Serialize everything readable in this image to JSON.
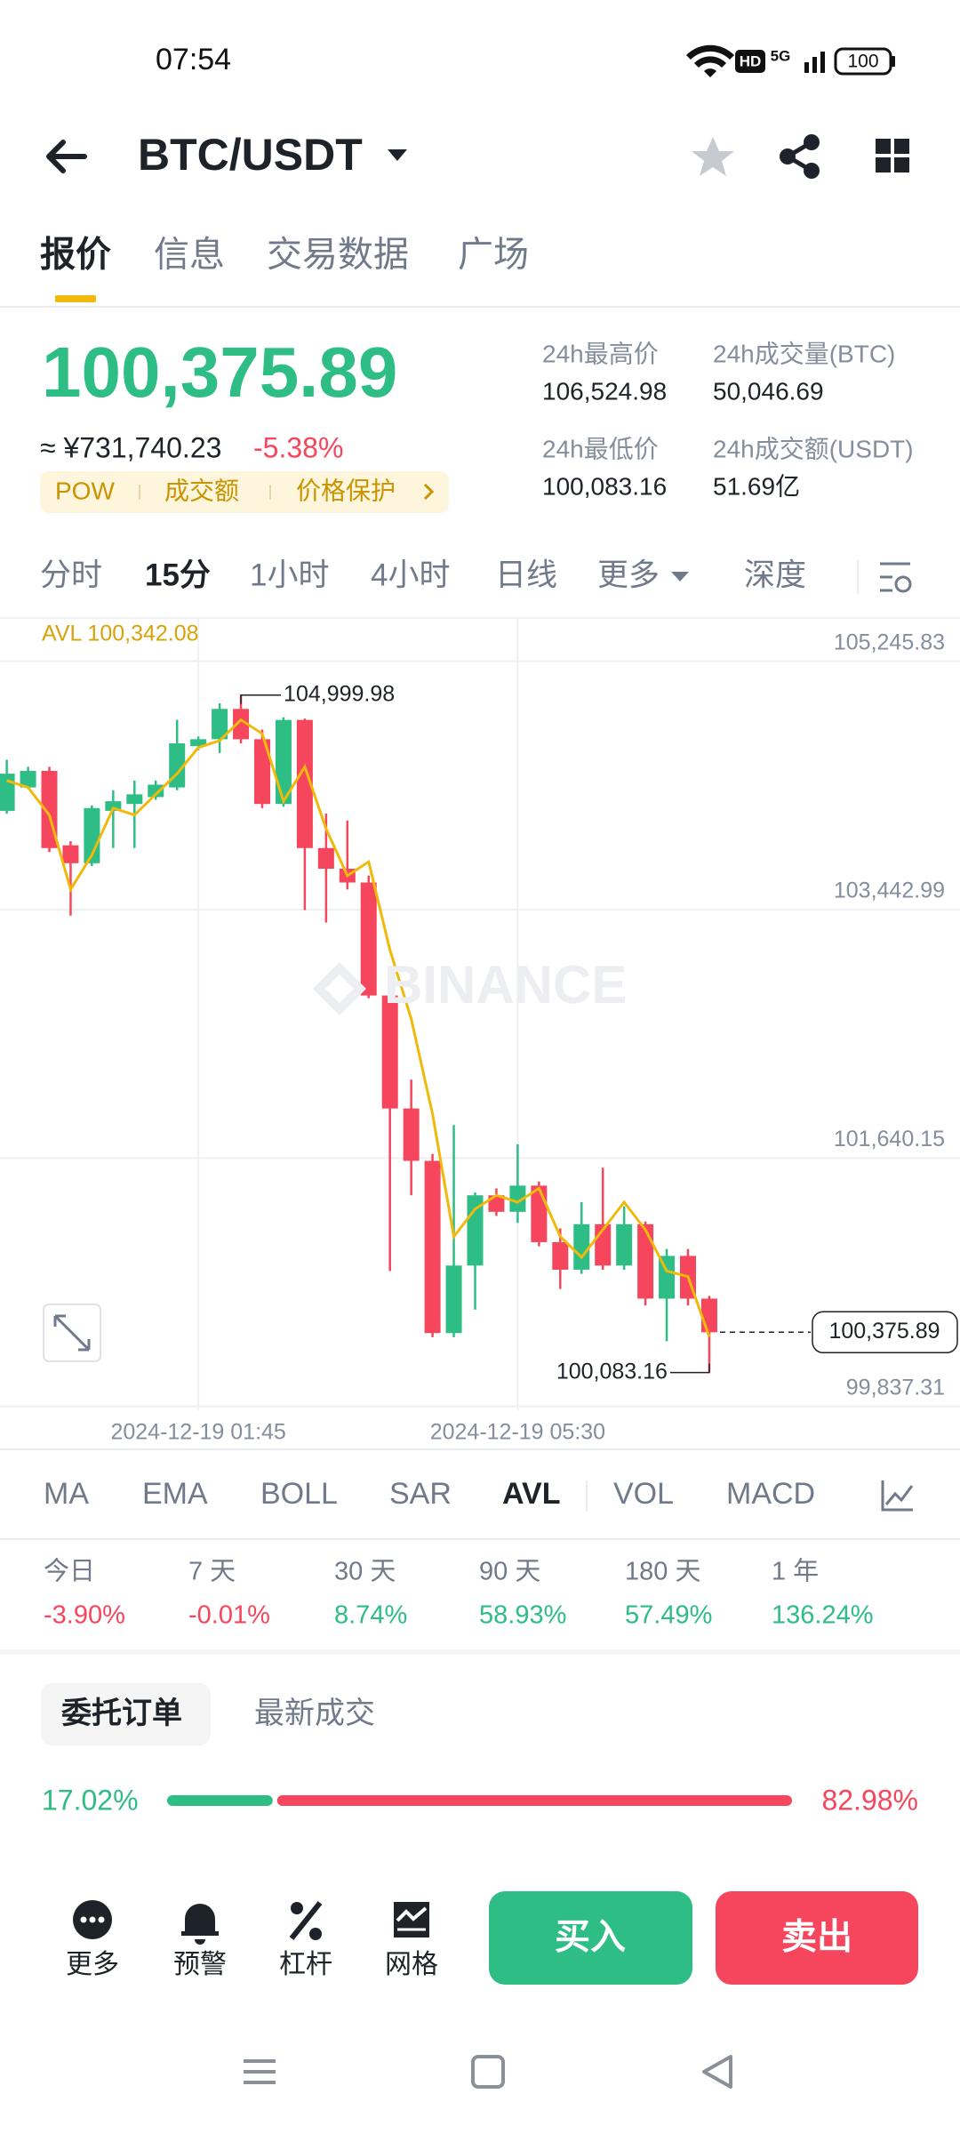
{
  "status_bar": {
    "time": "07:54",
    "hd": "HD",
    "network": "5G",
    "battery": "100"
  },
  "header": {
    "pair": "BTC/USDT"
  },
  "tabs": [
    "报价",
    "信息",
    "交易数据",
    "广场"
  ],
  "quote": {
    "price": "100,375.89",
    "cny": "≈ ¥731,740.23",
    "change": "-5.38%",
    "tags": [
      "POW",
      "成交额",
      "价格保护"
    ],
    "stats": [
      {
        "label": "24h最高价",
        "value": "106,524.98"
      },
      {
        "label": "24h成交量(BTC)",
        "value": "50,046.69"
      },
      {
        "label": "24h最低价",
        "value": "100,083.16"
      },
      {
        "label": "24h成交额(USDT)",
        "value": "51.69亿"
      }
    ]
  },
  "intervals": [
    "分时",
    "15分",
    "1小时",
    "4小时",
    "日线",
    "更多",
    "深度"
  ],
  "chart_data": {
    "type": "candlestick",
    "avl_label": "AVL 100,342.08",
    "watermark": "BINANCE",
    "categories": [
      null,
      null,
      null,
      null,
      null,
      null,
      null,
      null,
      null,
      "2024-12-19 01:45",
      null,
      null,
      null,
      null,
      null,
      null,
      null,
      null,
      null,
      null,
      null,
      null,
      null,
      null,
      "2024-12-19 05:30",
      null,
      null,
      null,
      null,
      null,
      null,
      null,
      null,
      null
    ],
    "open": [
      104160,
      104330,
      104450,
      103910,
      103780,
      104160,
      104210,
      104260,
      104330,
      104630,
      104680,
      104900,
      104680,
      104210,
      104820,
      103890,
      103740,
      103640,
      102820,
      102000,
      101620,
      100370,
      100860,
      101370,
      101250,
      101440,
      101030,
      100830,
      101160,
      100860,
      101160,
      100620,
      100930,
      100620
    ],
    "high": [
      104530,
      104480,
      104480,
      103940,
      104200,
      104310,
      104380,
      104380,
      104820,
      104700,
      104940,
      104999.98,
      104750,
      104840,
      104830,
      104140,
      104090,
      103690,
      102850,
      102210,
      101670,
      101880,
      101390,
      101420,
      101740,
      101470,
      101130,
      101320,
      101570,
      101290,
      101180,
      100980,
      100980,
      100640
    ],
    "low": [
      104140,
      104320,
      103860,
      103400,
      103760,
      103890,
      103890,
      104240,
      104310,
      104600,
      104580,
      104650,
      104180,
      104190,
      103440,
      103350,
      103590,
      102800,
      100820,
      101370,
      100340,
      100340,
      100540,
      101220,
      101170,
      101000,
      100690,
      100800,
      100830,
      100830,
      100570,
      100310,
      100570,
      100083.16
    ],
    "close": [
      104430,
      104450,
      103890,
      103780,
      104180,
      104230,
      104280,
      104350,
      104650,
      104680,
      104900,
      104680,
      104210,
      104820,
      103890,
      103740,
      103640,
      102820,
      102000,
      101620,
      100370,
      100860,
      101370,
      101250,
      101440,
      101030,
      100830,
      101160,
      100860,
      101160,
      100620,
      100930,
      100620,
      100375.89
    ],
    "avl": [
      104380,
      104330,
      104130,
      103590,
      103840,
      104180,
      104130,
      104280,
      104430,
      104620,
      104670,
      104820,
      104720,
      104230,
      104480,
      104030,
      103690,
      103790,
      103150,
      102650,
      101960,
      101070,
      101270,
      101370,
      101320,
      101420,
      101070,
      100920,
      101120,
      101320,
      101120,
      100820,
      100780,
      100342.08
    ],
    "up_color": "#2ebd85",
    "down_color": "#f6465d",
    "avl_color": "#f0b90b",
    "ylim": [
      99810,
      105560
    ],
    "yticks": [
      {
        "value": 105245.83,
        "label": "105,245.83"
      },
      {
        "value": 103442.99,
        "label": "103,442.99"
      },
      {
        "value": 101640.15,
        "label": "101,640.15"
      },
      {
        "value": 99837.31,
        "label": "99,837.31"
      }
    ],
    "high_marker": {
      "value": 104999.98,
      "label": "104,999.98"
    },
    "low_marker": {
      "value": 100083.16,
      "label": "100,083.16"
    },
    "last_price": {
      "value": 100375.89,
      "label": "100,375.89"
    },
    "grid": true
  },
  "indicators": [
    "MA",
    "EMA",
    "BOLL",
    "SAR",
    "AVL",
    "VOL",
    "MACD"
  ],
  "performance": [
    {
      "label": "今日",
      "value": "-3.90%"
    },
    {
      "label": "7 天",
      "value": "-0.01%"
    },
    {
      "label": "30 天",
      "value": "8.74%"
    },
    {
      "label": "90 天",
      "value": "58.93%"
    },
    {
      "label": "180 天",
      "value": "57.49%"
    },
    {
      "label": "1 年",
      "value": "136.24%"
    }
  ],
  "order_tabs": [
    "委托订单",
    "最新成交"
  ],
  "ratio": {
    "values": [
      17.02,
      82.98
    ],
    "value_labels": [
      "17.02%",
      "82.98%"
    ]
  },
  "bottom_bar": {
    "actions": [
      "更多",
      "预警",
      "杠杆",
      "网格"
    ],
    "buy": "买入",
    "sell": "卖出"
  }
}
